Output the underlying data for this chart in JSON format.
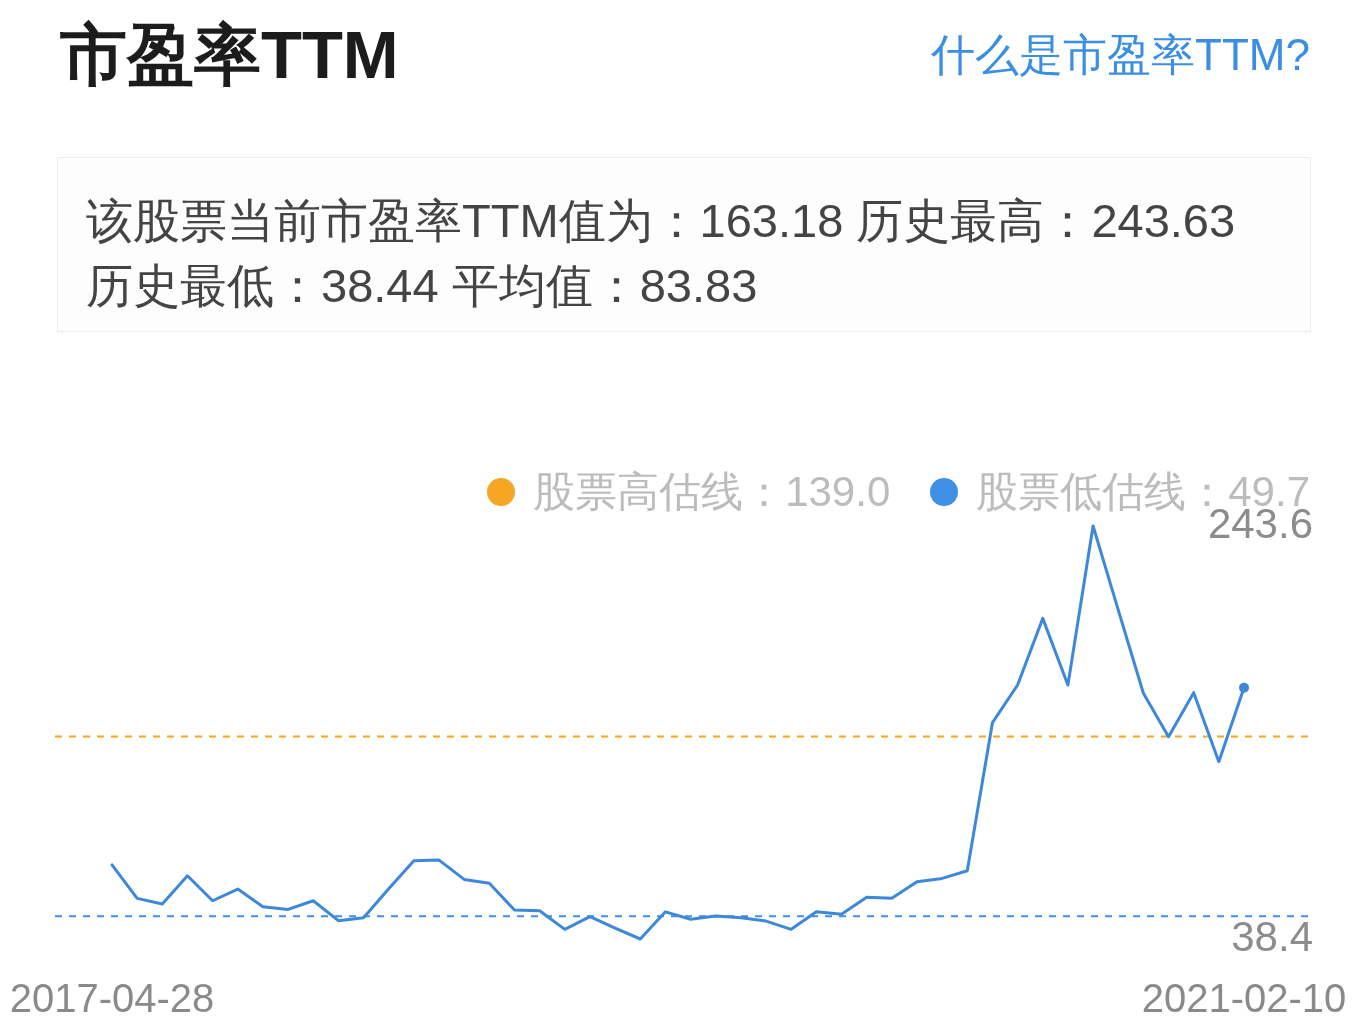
{
  "chart_data": {
    "type": "line",
    "title": "市盈率TTM",
    "subtitle": "该股票当前市盈率TTM值为：163.18 历史最高：243.63 历史最低：38.44 平均值：83.83",
    "categories": [
      "2017-04-28",
      null,
      null,
      null,
      null,
      null,
      null,
      null,
      null,
      null,
      null,
      null,
      null,
      null,
      null,
      null,
      null,
      null,
      null,
      null,
      null,
      null,
      null,
      null,
      null,
      null,
      null,
      null,
      null,
      null,
      null,
      null,
      null,
      null,
      null,
      null,
      null,
      null,
      null,
      null,
      null,
      null,
      null,
      null,
      null,
      "2021-02-10"
    ],
    "series": [
      {
        "color": "#3d88d8",
        "values": [
          75.2,
          58.6,
          55.8,
          69.8,
          57.4,
          63.2,
          54.4,
          53.1,
          57.4,
          47.5,
          49.0,
          63.4,
          77.3,
          77.6,
          68.0,
          66.1,
          52.8,
          52.4,
          43.2,
          49.5,
          43.8,
          38.4,
          51.9,
          48.2,
          49.8,
          49.0,
          47.3,
          43.2,
          51.9,
          50.7,
          59.1,
          58.6,
          66.9,
          68.5,
          72.3,
          145.9,
          164.6,
          197.7,
          164.6,
          243.6,
          201.9,
          160.5,
          138.9,
          160.8,
          126.5,
          163.2
        ]
      },
      {
        "type": "scatter",
        "color": "#3d88d8",
        "marker": "circle",
        "values": [
          null,
          null,
          null,
          null,
          null,
          null,
          null,
          null,
          null,
          null,
          null,
          null,
          null,
          null,
          null,
          null,
          null,
          null,
          null,
          null,
          null,
          null,
          null,
          null,
          null,
          null,
          null,
          null,
          null,
          null,
          null,
          null,
          null,
          null,
          null,
          null,
          null,
          null,
          null,
          null,
          null,
          null,
          null,
          null,
          null,
          163.2
        ]
      }
    ],
    "ylim": [
      38.4,
      243.6
    ],
    "yticks": [
      38.4,
      243.6
    ],
    "ref_lines": [
      {
        "axis": "y",
        "value": 139.0,
        "label": "股票高估线：139.0",
        "color": "#f5a623",
        "line_style": "dashed"
      },
      {
        "axis": "y",
        "value": 49.7,
        "label": "股票低估线：49.7",
        "color": "#3f8fe6",
        "line_style": "dashed"
      }
    ],
    "annotations": [
      "什么是市盈率TTM?"
    ],
    "legend": "top right"
  }
}
